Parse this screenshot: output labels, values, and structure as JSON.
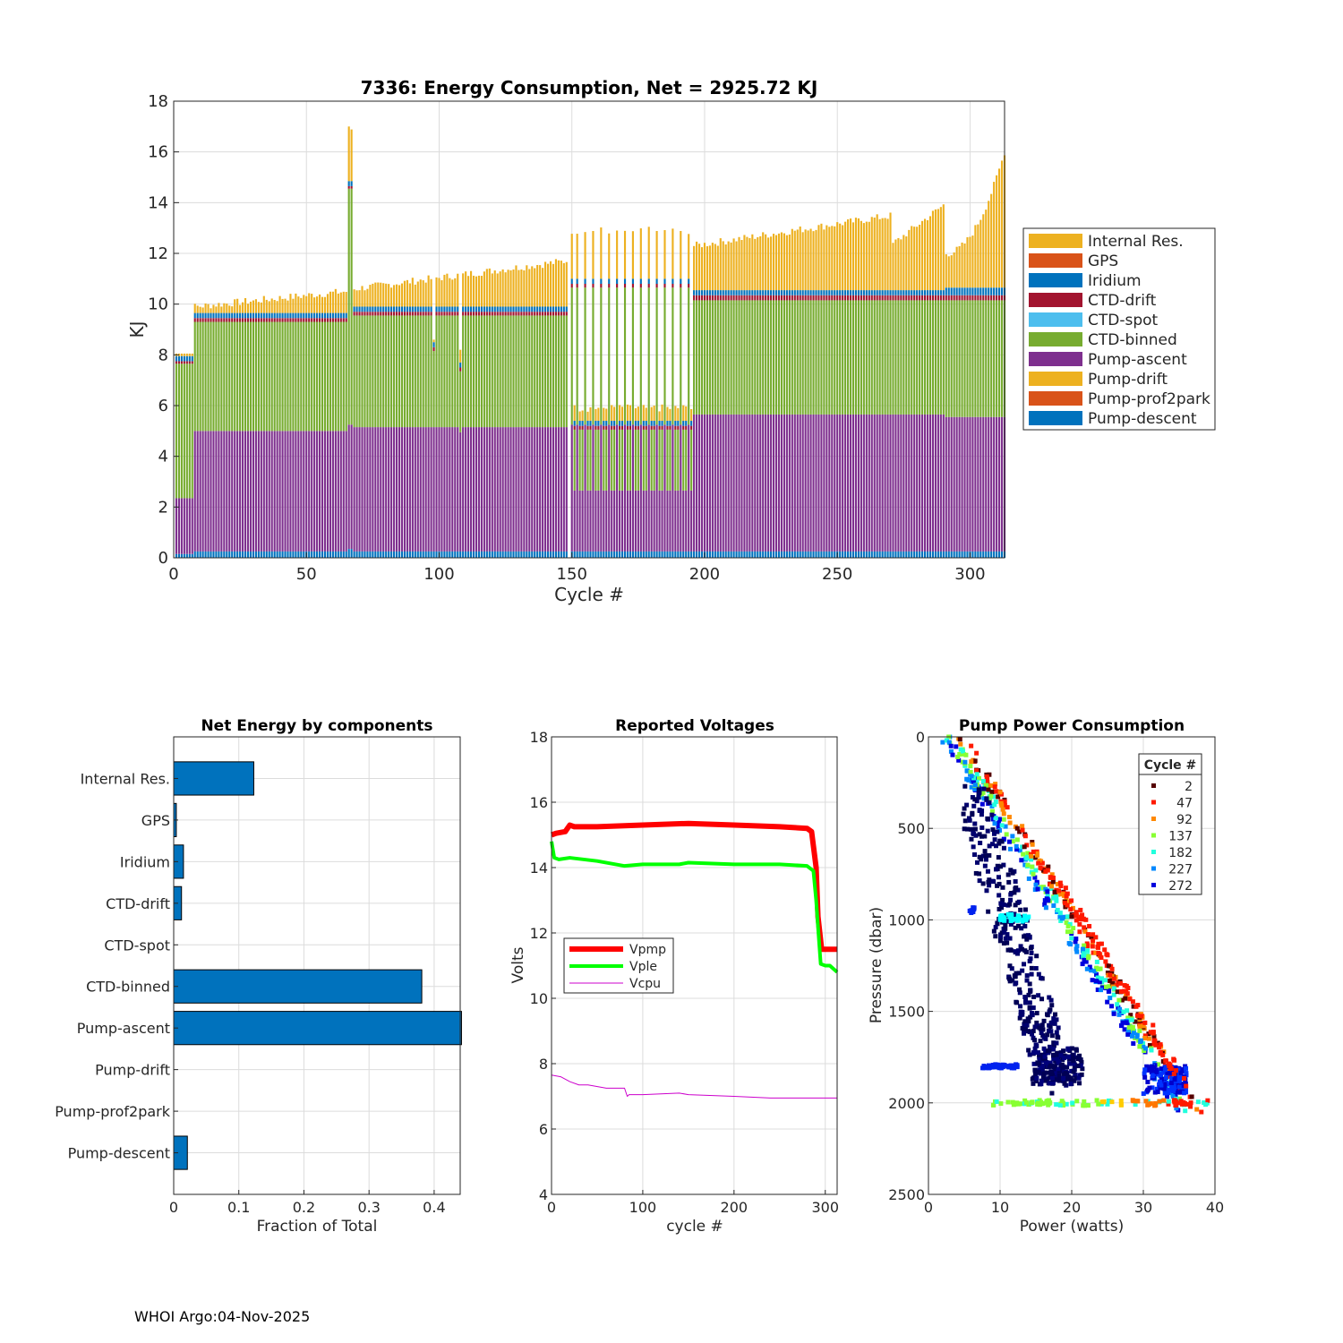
{
  "footer": "WHOI Argo:04-Nov-2025",
  "chart_data": [
    {
      "type": "bar",
      "stacked": true,
      "title": "7336: Energy Consumption,  Net = 2925.72 KJ",
      "xlabel": "Cycle #",
      "ylabel": "KJ",
      "xlim": [
        0,
        313
      ],
      "ylim": [
        0,
        18
      ],
      "xticks": [
        0,
        50,
        100,
        150,
        200,
        250,
        300
      ],
      "yticks": [
        0,
        2,
        4,
        6,
        8,
        10,
        12,
        14,
        16,
        18
      ],
      "grid": true,
      "legend_position": "right",
      "legend": [
        "Internal Res.",
        "GPS",
        "Iridium",
        "CTD-drift",
        "CTD-spot",
        "CTD-binned",
        "Pump-ascent",
        "Pump-drift",
        "Pump-prof2park",
        "Pump-descent"
      ],
      "colors": {
        "Internal Res.": "#EDB120",
        "GPS": "#D95319",
        "Iridium": "#0072BD",
        "CTD-drift": "#A2142F",
        "CTD-spot": "#4DBEEE",
        "CTD-binned": "#77AC30",
        "Pump-ascent": "#7E2F8E",
        "Pump-drift": "#EDB120",
        "Pump-prof2park": "#D95319",
        "Pump-descent": "#0072BD"
      },
      "segment_profile": [
        {
          "cycles": [
            1,
            7
          ],
          "pump_descent": 0.15,
          "pump_ascent": 2.2,
          "ctd_binned": 5.3,
          "ctd_drift": 0.1,
          "iridium": 0.2,
          "internal": 0.5,
          "total": 8.0
        },
        {
          "cycles": [
            8,
            65
          ],
          "pump_descent": 0.25,
          "pump_ascent": 4.75,
          "ctd_binned": 4.3,
          "ctd_drift": 0.15,
          "iridium": 0.2,
          "internal": 0.6,
          "total_start": 9.9,
          "total_end": 10.5
        },
        {
          "cycles": [
            66,
            67
          ],
          "pump_descent": 0.35,
          "pump_ascent": 4.9,
          "ctd_binned": 9.3,
          "ctd_drift": 0.1,
          "iridium": 0.2,
          "internal": 2.1,
          "total": 16.9
        },
        {
          "cycles": [
            68,
            148
          ],
          "pump_descent": 0.25,
          "pump_ascent": 4.9,
          "ctd_binned": 4.4,
          "ctd_drift": 0.15,
          "iridium": 0.2,
          "internal": 0.8,
          "total_start": 10.6,
          "total_end": 11.7
        },
        {
          "cycles": [
            150,
            195
          ],
          "pump_descent": 0.25,
          "pump_ascent": 2.4,
          "ctd_binned": 2.4,
          "ctd_drift": 0.15,
          "iridium": 0.2,
          "internal": 0.6,
          "total": 5.9,
          "note": "alternating cycles reach 13.0 KJ"
        },
        {
          "cycles": [
            196,
            290
          ],
          "pump_descent": 0.25,
          "pump_ascent": 5.4,
          "ctd_binned": 4.5,
          "ctd_drift": 0.2,
          "iridium": 0.2,
          "internal": 1.5,
          "total_start": 12.3,
          "total_end": 13.8
        },
        {
          "cycles": [
            291,
            313
          ],
          "pump_descent": 0.25,
          "pump_ascent": 5.3,
          "ctd_binned": 4.6,
          "ctd_drift": 0.2,
          "iridium": 0.3,
          "internal": 1.4,
          "total_start": 12.0,
          "total_end": 16.0
        }
      ]
    },
    {
      "type": "bar",
      "orientation": "horizontal",
      "title": "Net Energy by components",
      "xlabel": "Fraction of Total",
      "ylabel": "",
      "xlim": [
        0,
        0.44
      ],
      "xticks": [
        0,
        0.1,
        0.2,
        0.3,
        0.4
      ],
      "xtick_labels": [
        "0",
        "0.1",
        "0.2",
        "0.3",
        "0.4"
      ],
      "grid": true,
      "color": "#0072BD",
      "categories": [
        "Internal Res.",
        "GPS",
        "Iridium",
        "CTD-drift",
        "CTD-spot",
        "CTD-binned",
        "Pump-ascent",
        "Pump-drift",
        "Pump-prof2park",
        "Pump-descent"
      ],
      "values": [
        0.123,
        0.004,
        0.015,
        0.012,
        0.0,
        0.381,
        0.442,
        0.0,
        0.0,
        0.021
      ]
    },
    {
      "type": "line",
      "title": "Reported Voltages",
      "xlabel": "cycle #",
      "ylabel": "Volts",
      "xlim": [
        0,
        313
      ],
      "ylim": [
        4,
        18
      ],
      "xticks": [
        0,
        100,
        200,
        300
      ],
      "yticks": [
        4,
        6,
        8,
        10,
        12,
        14,
        16,
        18
      ],
      "grid": true,
      "legend_position": "left",
      "series": [
        {
          "name": "Vpmp",
          "color": "#FF0000",
          "x": [
            0,
            5,
            15,
            20,
            25,
            50,
            100,
            150,
            200,
            250,
            280,
            285,
            290,
            292,
            296,
            300,
            313
          ],
          "y": [
            15.0,
            15.05,
            15.1,
            15.3,
            15.25,
            15.25,
            15.3,
            15.35,
            15.3,
            15.25,
            15.2,
            15.1,
            14.0,
            12.5,
            11.5,
            11.5,
            11.5
          ]
        },
        {
          "name": "Vple",
          "color": "#00FF00",
          "x": [
            0,
            3,
            8,
            20,
            50,
            80,
            100,
            140,
            150,
            200,
            250,
            280,
            287,
            290,
            292,
            295,
            300,
            305,
            313
          ],
          "y": [
            14.8,
            14.3,
            14.25,
            14.3,
            14.2,
            14.05,
            14.1,
            14.1,
            14.15,
            14.1,
            14.1,
            14.05,
            13.9,
            13.0,
            12.2,
            11.05,
            11.0,
            11.0,
            10.8
          ]
        },
        {
          "name": "Vcpu",
          "color": "#CC00CC",
          "x": [
            0,
            10,
            20,
            30,
            40,
            60,
            80,
            83,
            85,
            100,
            140,
            150,
            200,
            240,
            260,
            313
          ],
          "y": [
            7.65,
            7.6,
            7.45,
            7.35,
            7.35,
            7.25,
            7.25,
            7.0,
            7.05,
            7.05,
            7.1,
            7.05,
            7.0,
            6.95,
            6.95,
            6.95
          ]
        }
      ]
    },
    {
      "type": "scatter",
      "title": "Pump Power Consumption",
      "xlabel": "Power (watts)",
      "ylabel": "Pressure (dbar)",
      "xlim": [
        0,
        40
      ],
      "ylim": [
        2500,
        0
      ],
      "y_reversed": true,
      "xticks": [
        0,
        10,
        20,
        30,
        40
      ],
      "yticks": [
        0,
        500,
        1000,
        1500,
        2000,
        2500
      ],
      "grid": true,
      "legend_title": "Cycle #",
      "legend_position": "top-right",
      "legend": [
        {
          "label": "2",
          "color": "#550000"
        },
        {
          "label": "47",
          "color": "#FF1A00"
        },
        {
          "label": "92",
          "color": "#FF8800"
        },
        {
          "label": "137",
          "color": "#88FF33"
        },
        {
          "label": "182",
          "color": "#22FFDD"
        },
        {
          "label": "227",
          "color": "#0088FF"
        },
        {
          "label": "272",
          "color": "#0000DD"
        }
      ],
      "trends": [
        {
          "name": "main ascent trend",
          "p0": [
            3,
            0
          ],
          "p1": [
            36,
            2050
          ]
        },
        {
          "name": "dark cloud",
          "center": [
            18,
            1800
          ],
          "spread": [
            2,
            100
          ]
        },
        {
          "name": "ctd plateau",
          "x_range": [
            10,
            33
          ],
          "pressure": 2000
        }
      ]
    }
  ]
}
